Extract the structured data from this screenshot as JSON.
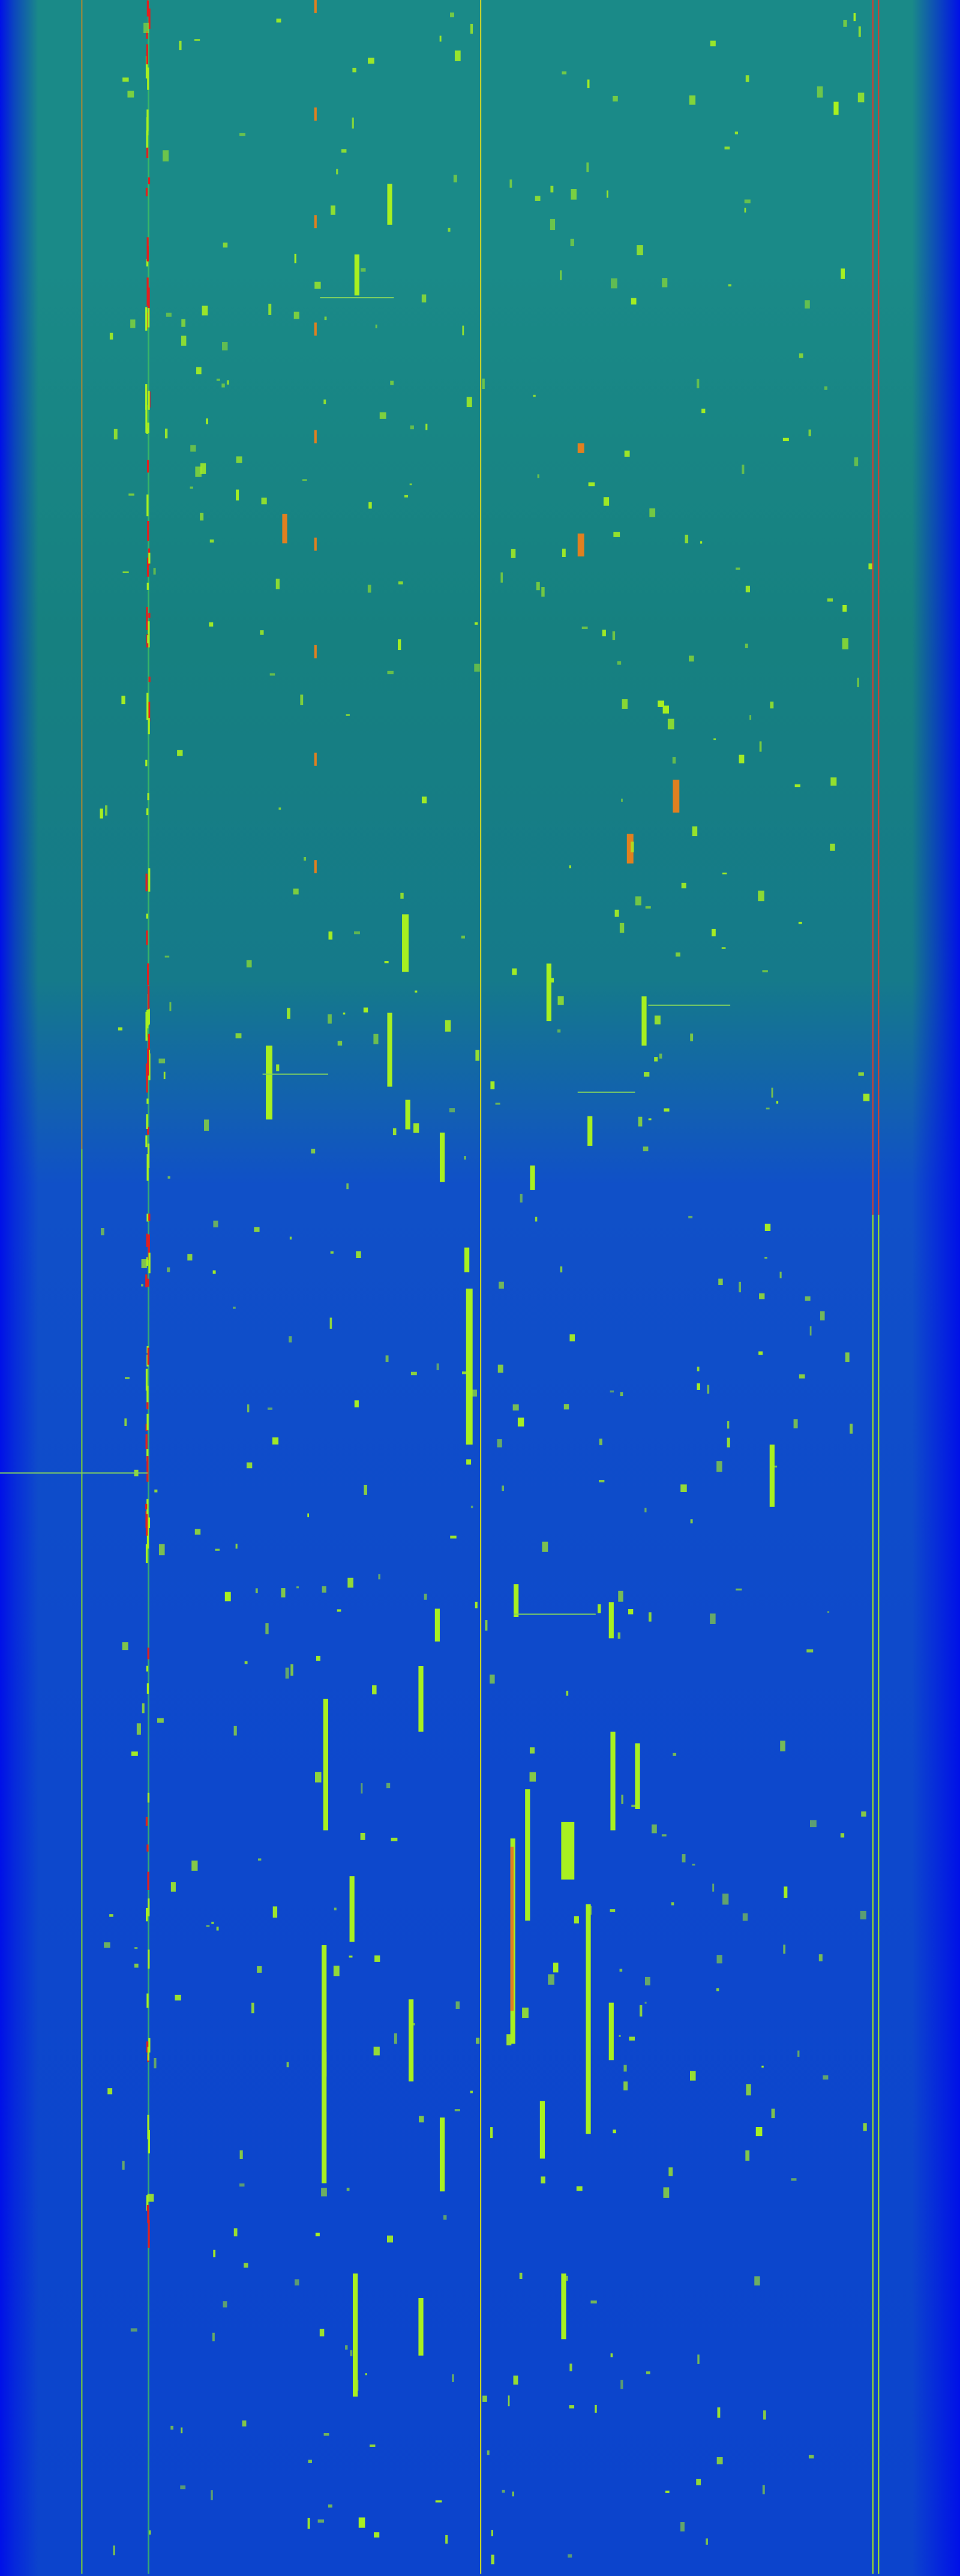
{
  "colors": {
    "background_top": "#1a8a88",
    "background_bottom": "#0c44cc",
    "edge": "#0010e8",
    "signal_strong": "#a8f020",
    "signal_peak": "#e08020",
    "signal_max": "#e02020"
  }
}
